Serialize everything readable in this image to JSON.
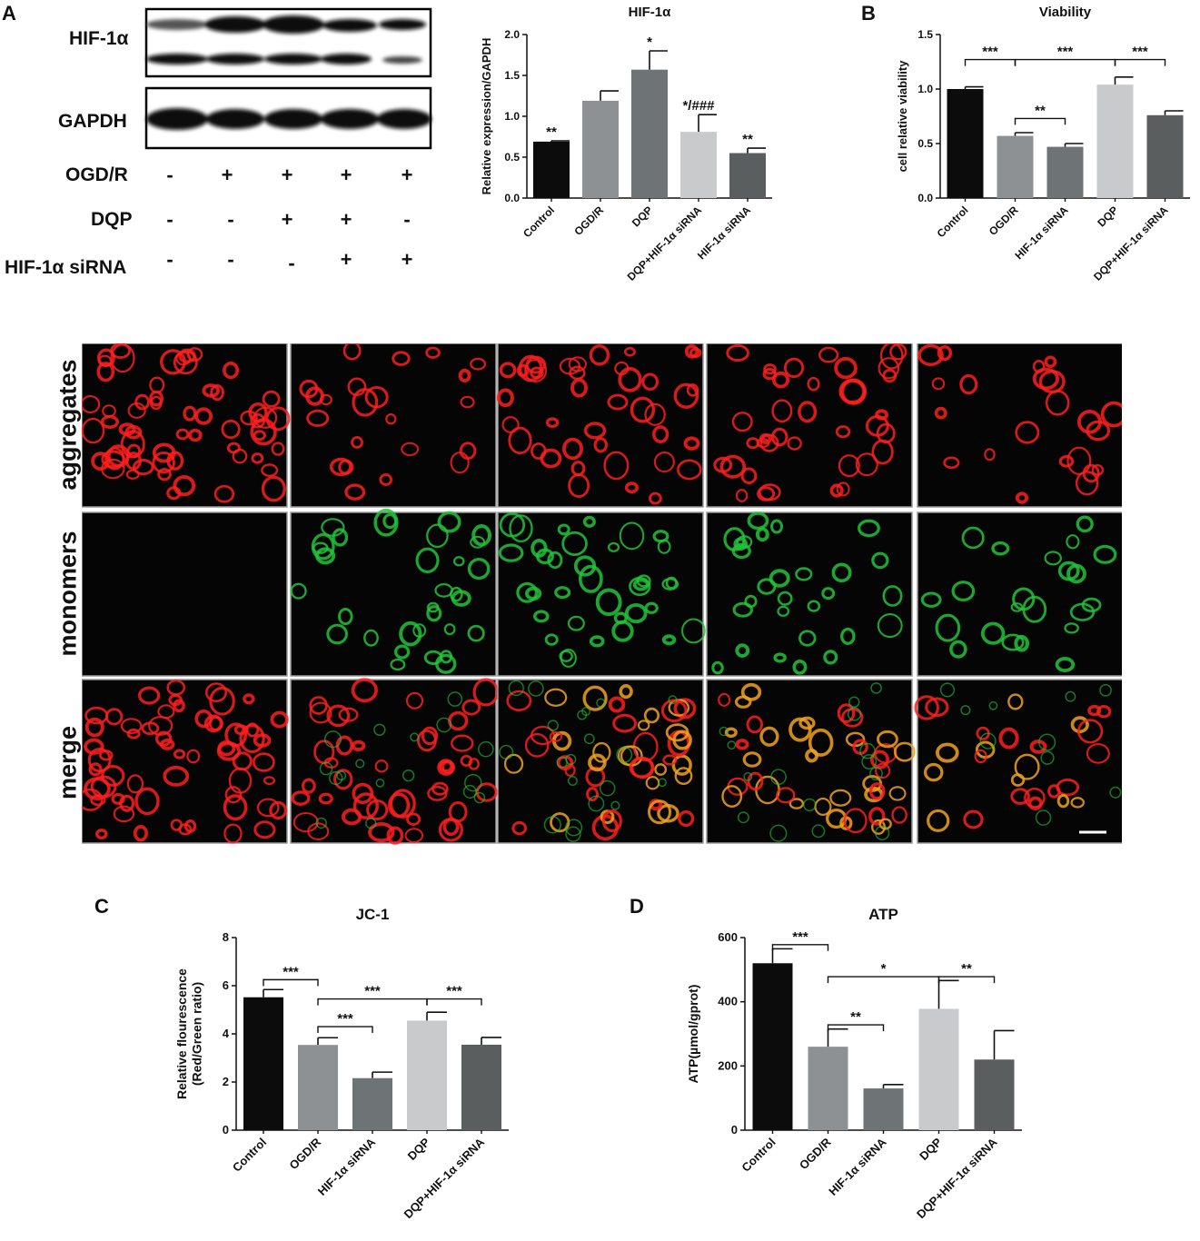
{
  "panels": {
    "a": "A",
    "b": "B",
    "c": "C",
    "d": "D"
  },
  "western_blot": {
    "proteins": [
      "HIF-1α",
      "GAPDH"
    ],
    "conditions": [
      {
        "label": "OGD/R",
        "signs": [
          "-",
          "+",
          "+",
          "+",
          "+"
        ]
      },
      {
        "label": "DQP",
        "signs": [
          "-",
          "-",
          "+",
          "+",
          "-"
        ]
      },
      {
        "label": "HIF-1α siRNA",
        "signs": [
          "-",
          "-",
          "-",
          "+",
          "+"
        ]
      }
    ]
  },
  "microscopy": {
    "row_labels": [
      "aggregates",
      "monomers",
      "merge"
    ],
    "channel_colors": {
      "aggregates": "#ff1f1f",
      "monomers": "#22c43a",
      "merge": "#ff3a1a"
    }
  },
  "chart_data": [
    {
      "id": "hif",
      "type": "bar",
      "title": "HIF-1α",
      "xlabel": "",
      "ylabel": "Relative expression/GAPDH",
      "categories": [
        "Control",
        "OGD/R",
        "DQP",
        "DQP+HIF-1α siRNA",
        "HIF-1α siRNA"
      ],
      "values": [
        0.69,
        1.19,
        1.57,
        0.81,
        0.55
      ],
      "errors": [
        0.01,
        0.12,
        0.23,
        0.21,
        0.06
      ],
      "colors": [
        "#0c0c0c",
        "#8d9194",
        "#6e7376",
        "#c9cacb",
        "#5a5e5f"
      ],
      "ylim": [
        0,
        2.0
      ],
      "yticks": [
        "0.0",
        "0.5",
        "1.0",
        "1.5",
        "2.0"
      ],
      "bar_labels": [
        "**",
        "",
        "*",
        "*/###",
        "**"
      ],
      "brackets": []
    },
    {
      "id": "viability",
      "type": "bar",
      "title": "Viability",
      "xlabel": "",
      "ylabel": "cell relative viability",
      "categories": [
        "Control",
        "OGD/R",
        "HIF-1α siRNA",
        "DQP",
        "DQP+HIF-1α siRNA"
      ],
      "values": [
        1.0,
        0.57,
        0.47,
        1.04,
        0.76
      ],
      "errors": [
        0.02,
        0.03,
        0.03,
        0.07,
        0.04
      ],
      "colors": [
        "#0c0c0c",
        "#8d9194",
        "#6e7376",
        "#c9cacb",
        "#5a5e5f"
      ],
      "ylim": [
        0,
        1.5
      ],
      "yticks": [
        "0.0",
        "0.5",
        "1.0",
        "1.5"
      ],
      "bar_labels": [],
      "brackets": [
        {
          "from": 0,
          "to": 1,
          "level": 1.27,
          "label": "***"
        },
        {
          "from": 1,
          "to": 3,
          "level": 1.27,
          "label": "***"
        },
        {
          "from": 3,
          "to": 4,
          "level": 1.27,
          "label": "***"
        },
        {
          "from": 1,
          "to": 2,
          "level": 0.73,
          "label": "**"
        }
      ]
    },
    {
      "id": "jc1",
      "type": "bar",
      "title": "JC-1",
      "xlabel": "",
      "ylabel": "Relative flourescence\n(Red/Green ratio)",
      "categories": [
        "Control",
        "OGD/R",
        "HIF-1α siRNA",
        "DQP",
        "DQP+HIF-1α siRNA"
      ],
      "values": [
        5.52,
        3.54,
        2.16,
        4.55,
        3.55
      ],
      "errors": [
        0.32,
        0.3,
        0.25,
        0.35,
        0.3
      ],
      "colors": [
        "#0c0c0c",
        "#8d9194",
        "#6e7376",
        "#c9cacb",
        "#5a5e5f"
      ],
      "ylim": [
        0,
        8
      ],
      "yticks": [
        "0",
        "2",
        "4",
        "6",
        "8"
      ],
      "bar_labels": [],
      "brackets": [
        {
          "from": 0,
          "to": 1,
          "level": 6.25,
          "label": "***"
        },
        {
          "from": 1,
          "to": 3,
          "level": 5.45,
          "label": "***"
        },
        {
          "from": 3,
          "to": 4,
          "level": 5.45,
          "label": "***"
        },
        {
          "from": 1,
          "to": 2,
          "level": 4.3,
          "label": "***"
        }
      ]
    },
    {
      "id": "atp",
      "type": "bar",
      "title": "ATP",
      "xlabel": "",
      "ylabel": "ATP(µmol/gprot)",
      "categories": [
        "Control",
        "OGD/R",
        "HIF-1α siRNA",
        "DQP",
        "DQP+HIF-1α siRNA"
      ],
      "values": [
        520,
        260,
        130,
        378,
        220
      ],
      "errors": [
        45,
        55,
        12,
        88,
        90
      ],
      "colors": [
        "#0c0c0c",
        "#8d9194",
        "#6e7376",
        "#c9cacb",
        "#5a5e5f"
      ],
      "ylim": [
        0,
        600
      ],
      "yticks": [
        "0",
        "200",
        "400",
        "600"
      ],
      "bar_labels": [],
      "brackets": [
        {
          "from": 0,
          "to": 1,
          "level": 578,
          "label": "***"
        },
        {
          "from": 1,
          "to": 3,
          "level": 478,
          "label": "*"
        },
        {
          "from": 3,
          "to": 4,
          "level": 478,
          "label": "**"
        },
        {
          "from": 1,
          "to": 2,
          "level": 328,
          "label": "**"
        }
      ]
    }
  ]
}
